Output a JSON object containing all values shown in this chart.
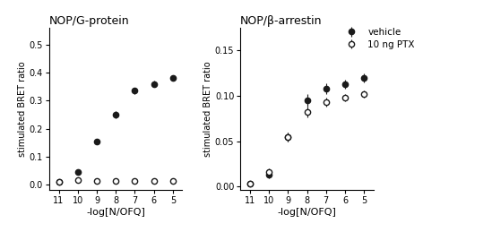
{
  "title_left": "NOP/G-protein",
  "title_right": "NOP/β-arrestin",
  "xlabel": "-log[N/OFQ]",
  "ylabel_left": "stimulated BRET ratio",
  "ylabel_right": "stimulated BRET ratio",
  "legend_labels": [
    "vehicle",
    "10 ng PTX"
  ],
  "xdata": [
    -11,
    -10,
    -9,
    -8,
    -7,
    -6,
    -5
  ],
  "left_vehicle_y": [
    0.01,
    0.045,
    0.155,
    0.25,
    0.335,
    0.36,
    0.38
  ],
  "left_vehicle_yerr": [
    0.005,
    0.007,
    0.01,
    0.012,
    0.012,
    0.01,
    0.008
  ],
  "left_ptx_y": [
    0.01,
    0.015,
    0.013,
    0.013,
    0.012,
    0.012,
    0.012
  ],
  "left_ptx_yerr": [
    0.003,
    0.003,
    0.003,
    0.003,
    0.003,
    0.003,
    0.003
  ],
  "right_vehicle_y": [
    0.003,
    0.013,
    0.055,
    0.095,
    0.108,
    0.113,
    0.12
  ],
  "right_vehicle_yerr": [
    0.002,
    0.004,
    0.005,
    0.007,
    0.006,
    0.005,
    0.005
  ],
  "right_ptx_y": [
    0.003,
    0.016,
    0.055,
    0.082,
    0.093,
    0.098,
    0.102
  ],
  "right_ptx_yerr": [
    0.002,
    0.004,
    0.005,
    0.006,
    0.005,
    0.004,
    0.004
  ],
  "left_ylim": [
    -0.02,
    0.56
  ],
  "left_yticks": [
    0.0,
    0.1,
    0.2,
    0.3,
    0.4,
    0.5
  ],
  "right_ylim": [
    -0.004,
    0.175
  ],
  "right_yticks": [
    0.0,
    0.05,
    0.1,
    0.15
  ],
  "xticks": [
    -11,
    -10,
    -9,
    -8,
    -7,
    -6,
    -5
  ],
  "xlim": [
    -11.5,
    -4.5
  ],
  "color_vehicle": "#1a1a1a",
  "color_ptx": "#1a1a1a",
  "marker_size": 4.5,
  "line_width": 1.1,
  "bg_color": "#ffffff"
}
